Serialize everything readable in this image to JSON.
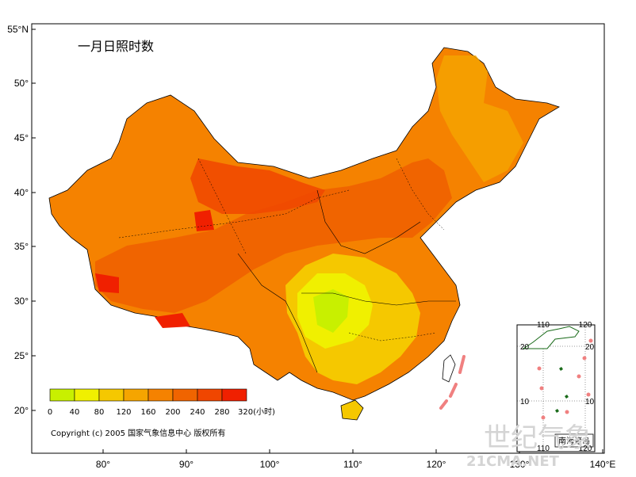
{
  "map": {
    "title": "一月日照时数",
    "copyright": "Copyright (c) 2005 国家气象信息中心 版权所有",
    "x_ticks": [
      "80°",
      "90°",
      "100°",
      "110°",
      "120°",
      "130°",
      "140°E"
    ],
    "y_ticks": [
      "55°N",
      "50°",
      "45°",
      "40°",
      "35°",
      "30°",
      "25°",
      "20°"
    ]
  },
  "legend": {
    "labels": [
      "0",
      "40",
      "80",
      "120",
      "160",
      "200",
      "240",
      "280",
      "320(小时)"
    ],
    "colors": [
      "#c8f000",
      "#f0f000",
      "#f5c800",
      "#f5a500",
      "#f58200",
      "#f06400",
      "#f04600",
      "#f02000"
    ]
  },
  "inset": {
    "label": "南海诸岛",
    "x_ticks_top": [
      "110",
      "120"
    ],
    "x_ticks_bottom": [
      "110",
      "120"
    ],
    "y_ticks_left": [
      "20",
      "10"
    ],
    "y_ticks_right": [
      "20",
      "10"
    ]
  },
  "watermark": {
    "line1": "世纪气象",
    "line2": "21CMA.NET"
  }
}
